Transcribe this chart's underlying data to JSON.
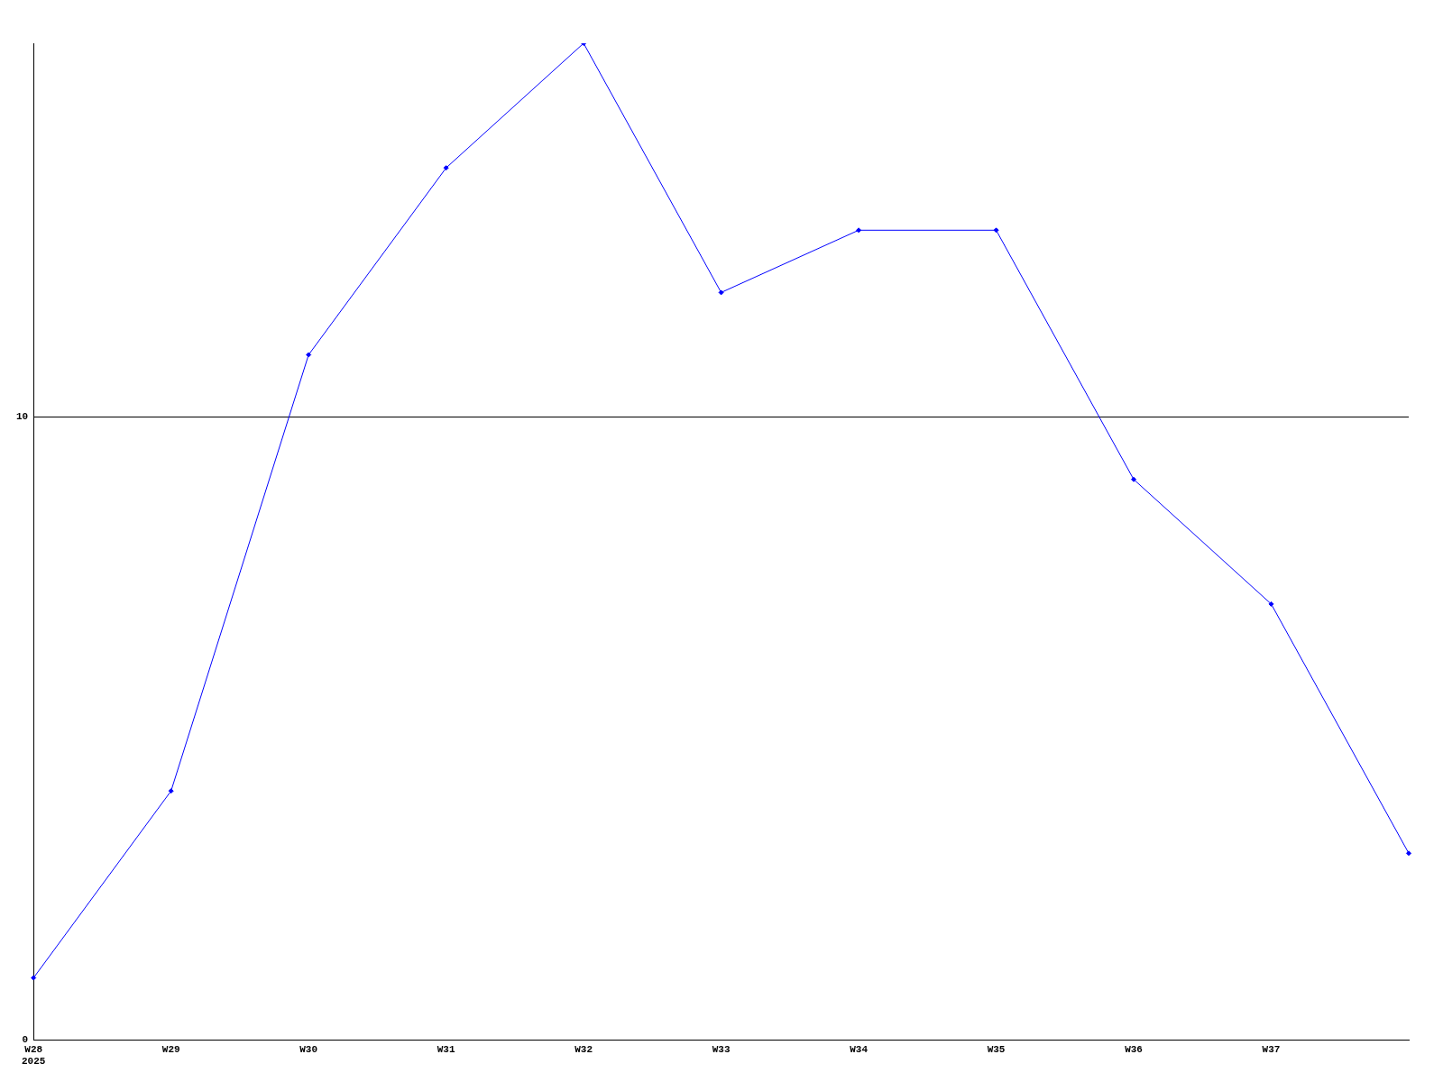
{
  "chart_data": {
    "type": "line",
    "categories": [
      "W28\n2025",
      "W29",
      "W30",
      "W31",
      "W32",
      "W33",
      "W34",
      "W35",
      "W36",
      "W37",
      null
    ],
    "series": [
      {
        "color": "#0000ff",
        "values": [
          1,
          4,
          11,
          14,
          16,
          12,
          13,
          13,
          9,
          7,
          3
        ]
      }
    ],
    "ylim": [
      0,
      16
    ],
    "yticks": [
      0,
      10
    ],
    "grid": "y",
    "legend": false,
    "marker": "diamond",
    "line_style": "solid"
  }
}
